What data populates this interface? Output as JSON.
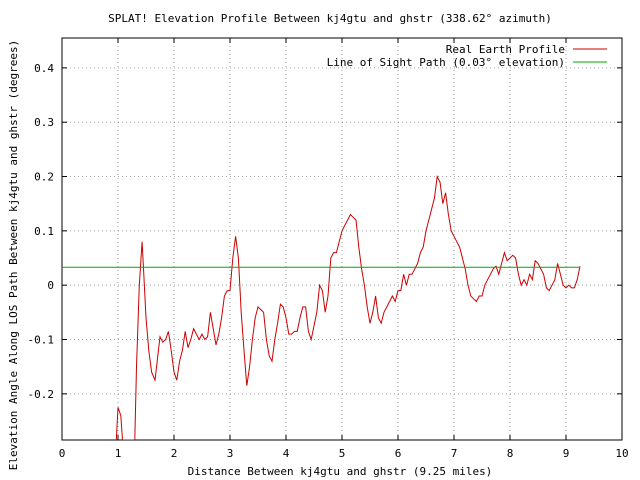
{
  "chart_data": {
    "type": "line",
    "title": "SPLAT! Elevation Profile Between kj4gtu and ghstr (338.62° azimuth)",
    "xlabel": "Distance Between kj4gtu and ghstr (9.25 miles)",
    "ylabel": "Elevation Angle Along LOS Path Between kj4gtu and ghstr (degrees)",
    "xlim": [
      0,
      10
    ],
    "ylim": [
      -0.285,
      0.455
    ],
    "xticks": [
      "0",
      "1",
      "2",
      "3",
      "4",
      "5",
      "6",
      "7",
      "8",
      "9",
      "10"
    ],
    "yticks": [
      {
        "v": 0.4,
        "label": "0.4"
      },
      {
        "v": 0.3,
        "label": "0.3"
      },
      {
        "v": 0.2,
        "label": "0.2"
      },
      {
        "v": 0.1,
        "label": "0.1"
      },
      {
        "v": 0,
        "label": "0"
      },
      {
        "v": -0.1,
        "label": "-0.1"
      },
      {
        "v": -0.2,
        "label": "-0.2"
      }
    ],
    "grid": true,
    "legend_position": "top-right",
    "series": [
      {
        "name": "Real Earth Profile",
        "color": "#cc0000",
        "points": [
          [
            0.97,
            -0.285
          ],
          [
            1.0,
            -0.225
          ],
          [
            1.05,
            -0.24
          ],
          [
            1.08,
            -0.285
          ],
          [
            1.3,
            -0.285
          ],
          [
            1.33,
            -0.15
          ],
          [
            1.38,
            0.0
          ],
          [
            1.43,
            0.08
          ],
          [
            1.46,
            0.02
          ],
          [
            1.5,
            -0.06
          ],
          [
            1.55,
            -0.12
          ],
          [
            1.6,
            -0.16
          ],
          [
            1.66,
            -0.175
          ],
          [
            1.7,
            -0.14
          ],
          [
            1.75,
            -0.095
          ],
          [
            1.8,
            -0.105
          ],
          [
            1.85,
            -0.1
          ],
          [
            1.9,
            -0.085
          ],
          [
            1.95,
            -0.12
          ],
          [
            2.0,
            -0.16
          ],
          [
            2.05,
            -0.175
          ],
          [
            2.1,
            -0.14
          ],
          [
            2.15,
            -0.12
          ],
          [
            2.2,
            -0.085
          ],
          [
            2.25,
            -0.115
          ],
          [
            2.3,
            -0.1
          ],
          [
            2.35,
            -0.08
          ],
          [
            2.4,
            -0.09
          ],
          [
            2.45,
            -0.1
          ],
          [
            2.5,
            -0.09
          ],
          [
            2.55,
            -0.1
          ],
          [
            2.6,
            -0.095
          ],
          [
            2.65,
            -0.05
          ],
          [
            2.7,
            -0.08
          ],
          [
            2.75,
            -0.11
          ],
          [
            2.8,
            -0.09
          ],
          [
            2.85,
            -0.06
          ],
          [
            2.9,
            -0.02
          ],
          [
            2.95,
            -0.01
          ],
          [
            3.0,
            -0.01
          ],
          [
            3.05,
            0.05
          ],
          [
            3.1,
            0.09
          ],
          [
            3.15,
            0.05
          ],
          [
            3.2,
            -0.05
          ],
          [
            3.25,
            -0.12
          ],
          [
            3.3,
            -0.185
          ],
          [
            3.35,
            -0.15
          ],
          [
            3.4,
            -0.1
          ],
          [
            3.45,
            -0.06
          ],
          [
            3.5,
            -0.04
          ],
          [
            3.55,
            -0.045
          ],
          [
            3.6,
            -0.05
          ],
          [
            3.65,
            -0.1
          ],
          [
            3.7,
            -0.13
          ],
          [
            3.75,
            -0.14
          ],
          [
            3.8,
            -0.1
          ],
          [
            3.85,
            -0.07
          ],
          [
            3.9,
            -0.035
          ],
          [
            3.95,
            -0.04
          ],
          [
            4.0,
            -0.06
          ],
          [
            4.05,
            -0.09
          ],
          [
            4.1,
            -0.09
          ],
          [
            4.15,
            -0.085
          ],
          [
            4.2,
            -0.085
          ],
          [
            4.25,
            -0.06
          ],
          [
            4.3,
            -0.04
          ],
          [
            4.35,
            -0.04
          ],
          [
            4.4,
            -0.085
          ],
          [
            4.45,
            -0.1
          ],
          [
            4.5,
            -0.075
          ],
          [
            4.55,
            -0.05
          ],
          [
            4.6,
            0.0
          ],
          [
            4.65,
            -0.01
          ],
          [
            4.7,
            -0.05
          ],
          [
            4.75,
            -0.02
          ],
          [
            4.8,
            0.05
          ],
          [
            4.85,
            0.06
          ],
          [
            4.9,
            0.06
          ],
          [
            4.95,
            0.08
          ],
          [
            5.0,
            0.1
          ],
          [
            5.05,
            0.11
          ],
          [
            5.1,
            0.12
          ],
          [
            5.15,
            0.13
          ],
          [
            5.2,
            0.125
          ],
          [
            5.25,
            0.12
          ],
          [
            5.3,
            0.07
          ],
          [
            5.35,
            0.03
          ],
          [
            5.4,
            0.0
          ],
          [
            5.45,
            -0.04
          ],
          [
            5.5,
            -0.07
          ],
          [
            5.55,
            -0.05
          ],
          [
            5.6,
            -0.02
          ],
          [
            5.65,
            -0.06
          ],
          [
            5.7,
            -0.07
          ],
          [
            5.75,
            -0.05
          ],
          [
            5.8,
            -0.04
          ],
          [
            5.85,
            -0.03
          ],
          [
            5.9,
            -0.02
          ],
          [
            5.95,
            -0.03
          ],
          [
            6.0,
            -0.01
          ],
          [
            6.05,
            -0.01
          ],
          [
            6.1,
            0.02
          ],
          [
            6.15,
            0.0
          ],
          [
            6.2,
            0.02
          ],
          [
            6.25,
            0.02
          ],
          [
            6.3,
            0.03
          ],
          [
            6.35,
            0.04
          ],
          [
            6.4,
            0.06
          ],
          [
            6.45,
            0.07
          ],
          [
            6.5,
            0.1
          ],
          [
            6.55,
            0.12
          ],
          [
            6.6,
            0.14
          ],
          [
            6.65,
            0.16
          ],
          [
            6.7,
            0.2
          ],
          [
            6.75,
            0.19
          ],
          [
            6.8,
            0.15
          ],
          [
            6.85,
            0.17
          ],
          [
            6.9,
            0.13
          ],
          [
            6.95,
            0.1
          ],
          [
            7.0,
            0.09
          ],
          [
            7.05,
            0.08
          ],
          [
            7.1,
            0.07
          ],
          [
            7.15,
            0.05
          ],
          [
            7.2,
            0.03
          ],
          [
            7.25,
            0.0
          ],
          [
            7.3,
            -0.02
          ],
          [
            7.35,
            -0.025
          ],
          [
            7.4,
            -0.03
          ],
          [
            7.45,
            -0.02
          ],
          [
            7.5,
            -0.02
          ],
          [
            7.55,
            0.0
          ],
          [
            7.6,
            0.01
          ],
          [
            7.65,
            0.02
          ],
          [
            7.7,
            0.03
          ],
          [
            7.75,
            0.035
          ],
          [
            7.8,
            0.02
          ],
          [
            7.85,
            0.04
          ],
          [
            7.9,
            0.06
          ],
          [
            7.95,
            0.045
          ],
          [
            8.0,
            0.05
          ],
          [
            8.05,
            0.055
          ],
          [
            8.1,
            0.05
          ],
          [
            8.15,
            0.02
          ],
          [
            8.2,
            0.0
          ],
          [
            8.25,
            0.01
          ],
          [
            8.3,
            0.0
          ],
          [
            8.35,
            0.02
          ],
          [
            8.4,
            0.01
          ],
          [
            8.45,
            0.045
          ],
          [
            8.5,
            0.04
          ],
          [
            8.55,
            0.03
          ],
          [
            8.6,
            0.02
          ],
          [
            8.65,
            -0.005
          ],
          [
            8.7,
            -0.01
          ],
          [
            8.75,
            0.0
          ],
          [
            8.8,
            0.01
          ],
          [
            8.85,
            0.04
          ],
          [
            8.9,
            0.02
          ],
          [
            8.95,
            0.0
          ],
          [
            9.0,
            -0.005
          ],
          [
            9.05,
            0.0
          ],
          [
            9.1,
            -0.005
          ],
          [
            9.15,
            -0.005
          ],
          [
            9.2,
            0.01
          ],
          [
            9.25,
            0.035
          ]
        ]
      },
      {
        "name": "Line of Sight Path (0.03° elevation)",
        "color": "#00aa00",
        "points": [
          [
            0,
            0.033
          ],
          [
            9.25,
            0.033
          ]
        ]
      }
    ]
  }
}
